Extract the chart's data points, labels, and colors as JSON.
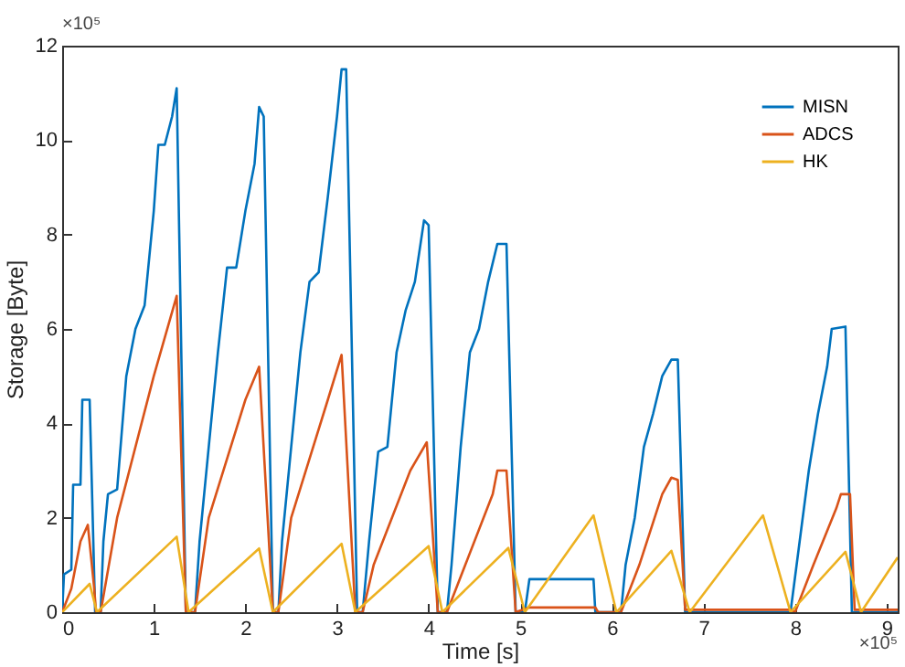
{
  "chart_data": {
    "type": "line",
    "xlabel": "Time [s]",
    "ylabel": "Storage [Byte]",
    "annotations": [
      "×10⁵",
      "×10⁵"
    ],
    "xlim": [
      0,
      9.12
    ],
    "xticks": [
      0,
      1,
      2,
      3,
      4,
      5,
      6,
      7,
      8,
      9
    ],
    "ylim": [
      0,
      12
    ],
    "yticks": [
      0,
      2,
      4,
      6,
      8,
      10,
      12
    ],
    "grid": false,
    "legend": "top right",
    "marker": "none",
    "line_style": "solid",
    "series": [
      {
        "name": "MISN",
        "color": "#0072bd",
        "x": [
          0,
          0.02,
          0.1,
          0.12,
          0.2,
          0.22,
          0.3,
          0.36,
          0.42,
          0.45,
          0.5,
          0.6,
          0.7,
          0.8,
          0.9,
          1.0,
          1.05,
          1.12,
          1.2,
          1.25,
          1.35,
          1.45,
          1.5,
          1.6,
          1.7,
          1.8,
          1.9,
          2.0,
          2.1,
          2.15,
          2.2,
          2.3,
          2.36,
          2.4,
          2.5,
          2.6,
          2.7,
          2.8,
          2.9,
          3.0,
          3.05,
          3.1,
          3.22,
          3.28,
          3.35,
          3.45,
          3.55,
          3.65,
          3.75,
          3.85,
          3.95,
          4.0,
          4.1,
          4.2,
          4.25,
          4.35,
          4.45,
          4.55,
          4.65,
          4.75,
          4.85,
          4.95,
          5.05,
          5.1,
          5.8,
          5.82,
          6.1,
          6.15,
          6.25,
          6.35,
          6.45,
          6.55,
          6.65,
          6.72,
          6.8,
          7.95,
          8.05,
          8.15,
          8.25,
          8.35,
          8.4,
          8.55,
          8.62,
          9.12
        ],
        "values": [
          0,
          0.8,
          0.9,
          2.7,
          2.7,
          4.5,
          4.5,
          0,
          0,
          1.5,
          2.5,
          2.6,
          5,
          6,
          6.5,
          8.5,
          9.9,
          9.9,
          10.5,
          11.1,
          0,
          0,
          1.5,
          3.5,
          5.5,
          7.3,
          7.3,
          8.5,
          9.5,
          10.7,
          10.5,
          0,
          0,
          1.5,
          3.5,
          5.5,
          7,
          7.2,
          8.8,
          10.5,
          11.5,
          11.5,
          0,
          0,
          1.5,
          3.4,
          3.5,
          5.5,
          6.4,
          7,
          8.3,
          8.2,
          0,
          0,
          1,
          3.5,
          5.5,
          6,
          7,
          7.8,
          7.8,
          0,
          0,
          0.7,
          0.7,
          0,
          0,
          1,
          2,
          3.5,
          4.2,
          5,
          5.35,
          5.35,
          0,
          0,
          1.5,
          3,
          4.2,
          5.2,
          6,
          6.05,
          0,
          0
        ]
      },
      {
        "name": "ADCS",
        "color": "#d95319",
        "x": [
          0,
          0.1,
          0.2,
          0.28,
          0.35,
          0.37,
          0.42,
          0.6,
          1.0,
          1.25,
          1.35,
          1.45,
          1.6,
          2.0,
          2.15,
          2.3,
          2.36,
          2.5,
          2.9,
          3.05,
          3.2,
          3.28,
          3.4,
          3.8,
          3.98,
          4.1,
          4.2,
          4.4,
          4.7,
          4.75,
          4.85,
          4.95,
          5.1,
          5.82,
          5.85,
          6.1,
          6.3,
          6.55,
          6.65,
          6.72,
          6.8,
          7.95,
          8.0,
          8.2,
          8.45,
          8.5,
          8.6,
          8.65,
          9.12
        ],
        "values": [
          0,
          0.5,
          1.5,
          1.85,
          0.5,
          0,
          0,
          2,
          5,
          6.7,
          0,
          0,
          2,
          4.5,
          5.2,
          0,
          0,
          2,
          4.5,
          5.45,
          0,
          0,
          1,
          3,
          3.6,
          0,
          0,
          1,
          2.5,
          3,
          3,
          0,
          0.1,
          0.1,
          0,
          0,
          1,
          2.5,
          2.85,
          2.8,
          0.05,
          0.05,
          0,
          1,
          2.2,
          2.5,
          2.5,
          0.05,
          0.05
        ]
      },
      {
        "name": "HK",
        "color": "#edb120",
        "x": [
          0,
          0.3,
          0.38,
          1.25,
          1.38,
          2.15,
          2.3,
          3.05,
          3.2,
          4.0,
          4.15,
          4.87,
          5.05,
          5.8,
          6.05,
          6.65,
          6.85,
          7.65,
          7.95,
          8.55,
          8.72,
          9.12
        ],
        "values": [
          0,
          0.6,
          0,
          1.6,
          0,
          1.35,
          0,
          1.45,
          0,
          1.4,
          0,
          1.36,
          0,
          2.05,
          0,
          1.3,
          0,
          2.05,
          0,
          1.28,
          0,
          1.16
        ]
      }
    ]
  }
}
